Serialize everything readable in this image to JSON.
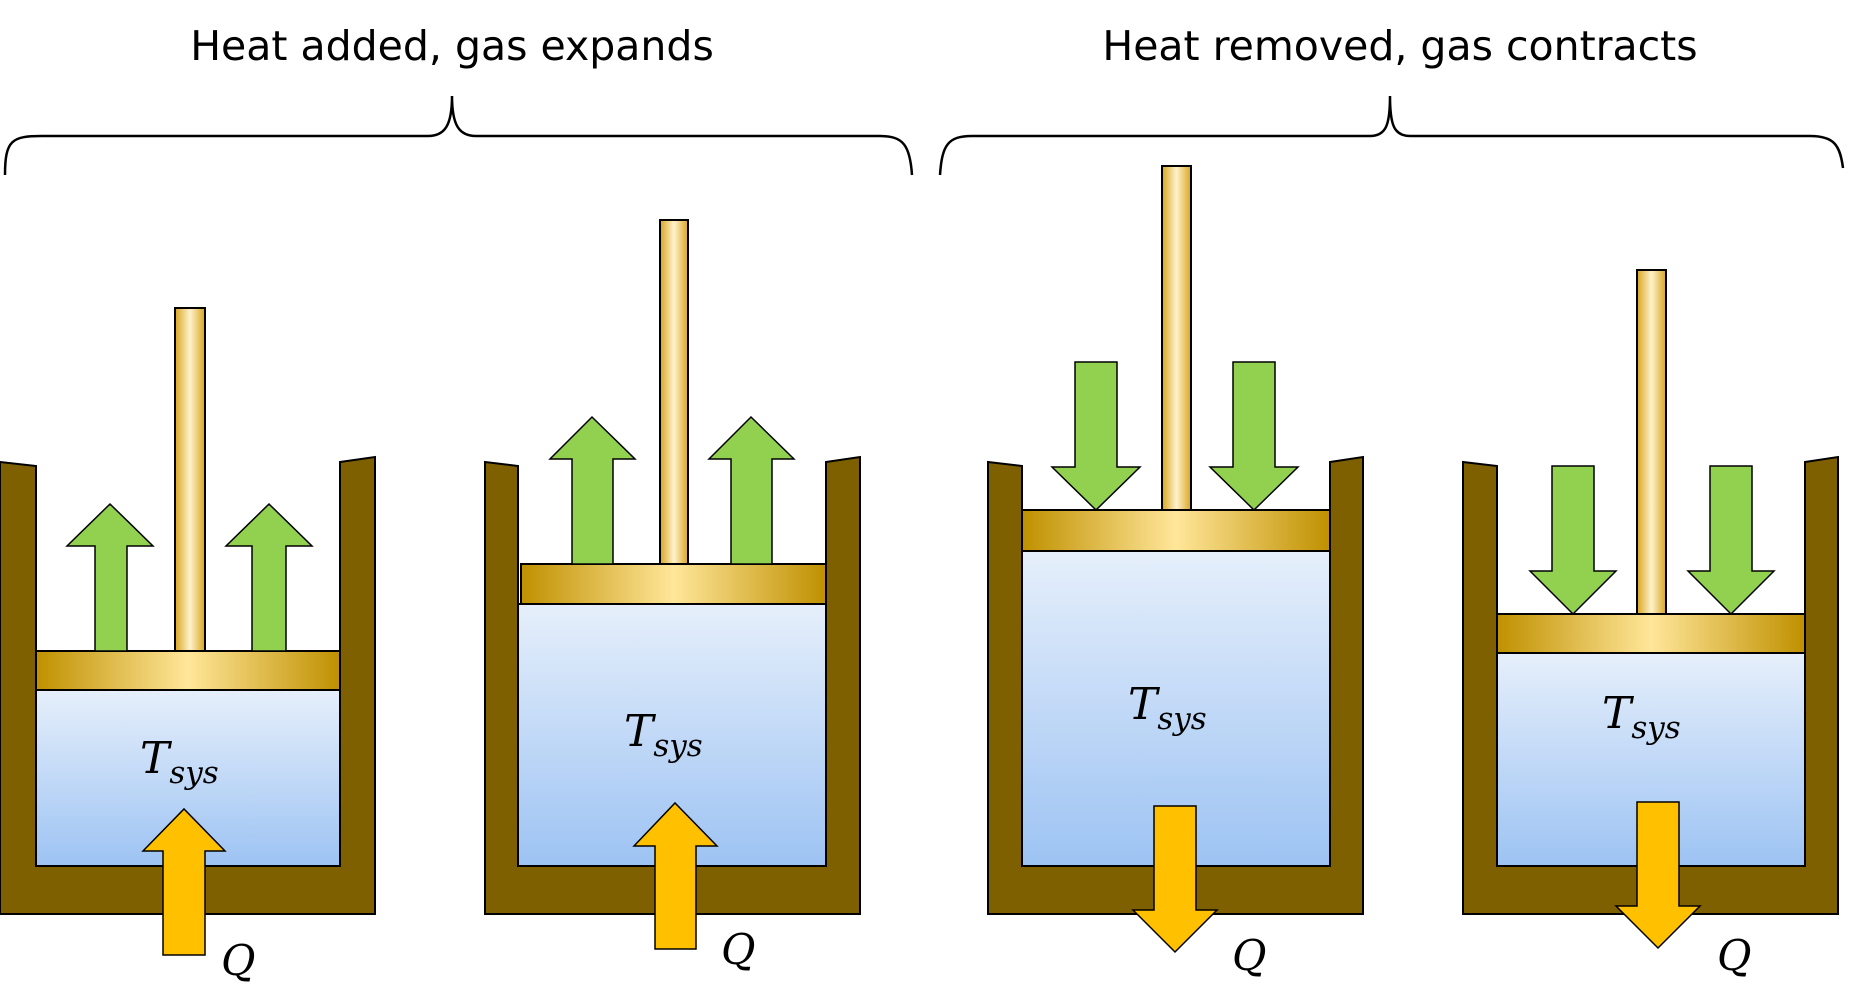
{
  "captions": {
    "heat_added": "Heat added, gas expands",
    "heat_removed": "Heat removed, gas contracts"
  },
  "labels": {
    "temperature_symbol": "T",
    "temperature_subscript": "sys",
    "heat_symbol": "Q"
  },
  "colors": {
    "cylinder_wall": "#7f6000",
    "gas_top": "#e6effb",
    "gas_bottom": "#9dc3f3",
    "piston_light": "#ffe699",
    "piston_dark": "#bf9000",
    "rod": "#f5cc63",
    "motion_arrow": "#92d050",
    "heat_arrow": "#ffc000",
    "outline": "#000000"
  },
  "stages": [
    {
      "name": "expanding-start",
      "group": "heat-added",
      "heat_flow": "in",
      "piston_motion": "up"
    },
    {
      "name": "expanding-end",
      "group": "heat-added",
      "heat_flow": "in",
      "piston_motion": "up"
    },
    {
      "name": "contracting-start",
      "group": "heat-removed",
      "heat_flow": "out",
      "piston_motion": "down"
    },
    {
      "name": "contracting-end",
      "group": "heat-removed",
      "heat_flow": "out",
      "piston_motion": "down"
    }
  ]
}
